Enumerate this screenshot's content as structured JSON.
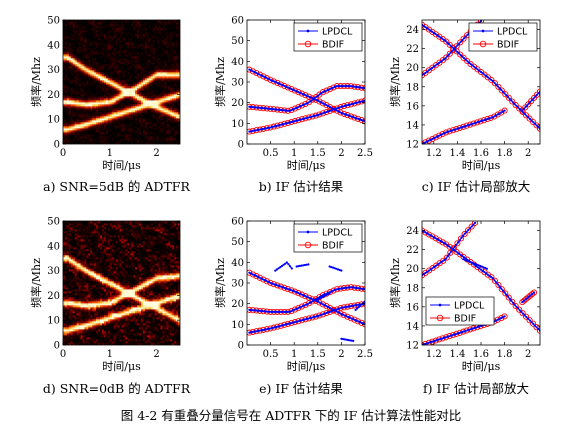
{
  "figure_caption": "图 4-2 有重叠分量信号在 ADTFR 下的 IF 估计算法性能对比",
  "chart_data": [
    {
      "id": "a",
      "type": "heatmap",
      "caption": "a) SNR=5dB 的 ADTFR",
      "xlabel": "时间/μs",
      "ylabel": "频率/Mhz",
      "xlim": [
        0,
        2.5
      ],
      "ylim": [
        0,
        50
      ],
      "xticks": [
        "0",
        "1",
        "2"
      ],
      "yticks": [
        "0",
        "10",
        "20",
        "30",
        "40",
        "50"
      ],
      "colormap": [
        "#000000",
        "#3a0000",
        "#8b0000",
        "#cc1a00",
        "#ff6a00",
        "#ffd34d",
        "#ffffe0"
      ],
      "noise_level": 0.35,
      "components": [
        {
          "name": "c1",
          "x": [
            0.1,
            0.5,
            1.0,
            1.5,
            2.0,
            2.5
          ],
          "y": [
            35,
            30,
            25,
            20,
            15,
            11
          ]
        },
        {
          "name": "c2",
          "x": [
            0.1,
            0.5,
            1.0,
            1.5,
            2.0,
            2.5
          ],
          "y": [
            17,
            16,
            17,
            22,
            28,
            28
          ]
        },
        {
          "name": "c3",
          "x": [
            0.1,
            0.5,
            1.0,
            1.5,
            2.0,
            2.5
          ],
          "y": [
            6,
            8,
            11,
            14,
            17,
            20
          ]
        }
      ]
    },
    {
      "id": "b",
      "type": "line",
      "caption": "b) IF 估计结果",
      "xlabel": "时间/μs",
      "ylabel": "频率/Mhz",
      "xlim": [
        0,
        2.5
      ],
      "ylim": [
        0,
        60
      ],
      "xticks": [
        "0.5",
        "1",
        "1.5",
        "2",
        "2.5"
      ],
      "yticks": [
        "0",
        "10",
        "20",
        "30",
        "40",
        "50",
        "60"
      ],
      "legend": [
        "LPDCL",
        "BDIF"
      ],
      "legend_position": "top-right",
      "series": [
        {
          "name": "LPDCL",
          "color": "#0000ff",
          "marker": "dot",
          "curves": [
            {
              "x": [
                0.05,
                0.5,
                1.0,
                1.5,
                2.0,
                2.5
              ],
              "y": [
                36,
                31,
                26,
                21,
                15,
                11
              ]
            },
            {
              "x": [
                0.05,
                0.5,
                0.9,
                1.3,
                1.6,
                1.9,
                2.2,
                2.5
              ],
              "y": [
                18,
                17,
                16,
                20,
                25,
                28,
                28,
                27
              ]
            },
            {
              "x": [
                0.05,
                0.5,
                1.0,
                1.5,
                2.0,
                2.5
              ],
              "y": [
                6,
                8,
                11,
                14,
                18,
                21
              ]
            }
          ]
        },
        {
          "name": "BDIF",
          "color": "#ff0000",
          "marker": "circle",
          "curves": [
            {
              "x": [
                0.05,
                0.5,
                1.0,
                1.5,
                2.0,
                2.5
              ],
              "y": [
                36,
                31,
                26,
                21,
                15,
                11
              ]
            },
            {
              "x": [
                0.05,
                0.5,
                0.9,
                1.3,
                1.6,
                1.9,
                2.2,
                2.5
              ],
              "y": [
                18,
                17,
                16,
                20,
                25,
                28,
                28,
                27
              ]
            },
            {
              "x": [
                0.05,
                0.5,
                1.0,
                1.5,
                2.0,
                2.5
              ],
              "y": [
                6,
                8,
                11,
                14,
                18,
                21
              ]
            }
          ]
        }
      ]
    },
    {
      "id": "c",
      "type": "line",
      "caption": "c) IF 估计局部放大",
      "xlabel": "时间/μs",
      "ylabel": "频率/Mhz",
      "xlim": [
        1.1,
        2.1
      ],
      "ylim": [
        12,
        25
      ],
      "xticks": [
        "1.2",
        "1.4",
        "1.6",
        "1.8",
        "2"
      ],
      "yticks": [
        "12",
        "14",
        "16",
        "18",
        "20",
        "22",
        "24"
      ],
      "legend": [
        "LPDCL",
        "BDIF"
      ],
      "legend_position": "top-right",
      "series": [
        {
          "name": "LPDCL",
          "color": "#0000ff",
          "marker": "dot",
          "curves": [
            {
              "x": [
                1.1,
                1.3,
                1.5,
                1.7,
                1.9,
                2.1
              ],
              "y": [
                24.5,
                22.8,
                20.5,
                18.6,
                16.0,
                13.6
              ]
            },
            {
              "x": [
                1.1,
                1.3,
                1.45,
                1.6
              ],
              "y": [
                19.2,
                21.0,
                23.0,
                24.9
              ]
            },
            {
              "x": [
                1.1,
                1.3,
                1.5,
                1.7,
                1.8
              ],
              "y": [
                12.0,
                13.2,
                14.0,
                14.8,
                15.5
              ]
            },
            {
              "x": [
                1.95,
                2.1
              ],
              "y": [
                15.5,
                17.5
              ]
            }
          ]
        },
        {
          "name": "BDIF",
          "color": "#ff0000",
          "marker": "circle",
          "curves": [
            {
              "x": [
                1.1,
                1.3,
                1.5,
                1.7,
                1.9,
                2.1
              ],
              "y": [
                24.5,
                22.8,
                20.5,
                18.6,
                16.0,
                13.6
              ]
            },
            {
              "x": [
                1.1,
                1.3,
                1.45,
                1.6
              ],
              "y": [
                19.2,
                21.0,
                23.0,
                24.9
              ]
            },
            {
              "x": [
                1.1,
                1.3,
                1.5,
                1.7,
                1.8
              ],
              "y": [
                12.0,
                13.2,
                14.0,
                14.8,
                15.5
              ]
            },
            {
              "x": [
                1.95,
                2.1
              ],
              "y": [
                15.5,
                17.5
              ]
            }
          ]
        }
      ]
    },
    {
      "id": "d",
      "type": "heatmap",
      "caption": "d) SNR=0dB 的 ADTFR",
      "xlabel": "时间/μs",
      "ylabel": "频率/Mhz",
      "xlim": [
        0,
        2.5
      ],
      "ylim": [
        0,
        50
      ],
      "xticks": [
        "0",
        "1",
        "2"
      ],
      "yticks": [
        "0",
        "10",
        "20",
        "30",
        "40",
        "50"
      ],
      "colormap": [
        "#000000",
        "#3a0000",
        "#8b0000",
        "#cc1a00",
        "#ff6a00",
        "#ffd34d",
        "#ffffe0"
      ],
      "noise_level": 0.7,
      "components": [
        {
          "name": "c1",
          "x": [
            0.1,
            0.5,
            1.0,
            1.5,
            2.0,
            2.5
          ],
          "y": [
            35,
            30,
            25,
            20,
            15,
            10
          ]
        },
        {
          "name": "c2",
          "x": [
            0.1,
            0.5,
            1.0,
            1.5,
            2.0,
            2.5
          ],
          "y": [
            17,
            16,
            17,
            22,
            27,
            28
          ]
        },
        {
          "name": "c3",
          "x": [
            0.1,
            0.5,
            1.0,
            1.5,
            2.0,
            2.5
          ],
          "y": [
            6,
            8,
            11,
            14,
            17,
            20
          ]
        }
      ]
    },
    {
      "id": "e",
      "type": "line",
      "caption": "e) IF 估计结果",
      "xlabel": "时间/μs",
      "ylabel": "频率/Mhz",
      "xlim": [
        0,
        2.5
      ],
      "ylim": [
        0,
        60
      ],
      "xticks": [
        "0.5",
        "1",
        "1.5",
        "2",
        "2.5"
      ],
      "yticks": [
        "0",
        "10",
        "20",
        "30",
        "40",
        "50",
        "60"
      ],
      "legend": [
        "LPDCL",
        "BDIF"
      ],
      "legend_position": "top-right",
      "series": [
        {
          "name": "LPDCL",
          "color": "#0000ff",
          "marker": "dot",
          "curves": [
            {
              "x": [
                0.05,
                0.5,
                1.0,
                1.5,
                2.0,
                2.5
              ],
              "y": [
                35,
                30,
                26,
                21,
                15,
                10
              ]
            },
            {
              "x": [
                0.05,
                0.5,
                0.9,
                1.3,
                1.6,
                1.9,
                2.2,
                2.5
              ],
              "y": [
                17,
                16,
                16,
                20,
                24,
                27,
                28,
                27
              ]
            },
            {
              "x": [
                0.05,
                0.5,
                1.0,
                1.5,
                2.0,
                2.5
              ],
              "y": [
                6,
                8,
                11,
                14,
                18,
                20
              ]
            },
            {
              "x": [
                0.6,
                0.85,
                0.95
              ],
              "y": [
                36,
                40,
                37
              ]
            },
            {
              "x": [
                1.05,
                1.3
              ],
              "y": [
                38,
                39
              ]
            },
            {
              "x": [
                1.75,
                2.0
              ],
              "y": [
                38,
                36
              ]
            },
            {
              "x": [
                1.5,
                1.75
              ],
              "y": [
                22,
                25
              ]
            },
            {
              "x": [
                2.0,
                2.25
              ],
              "y": [
                3,
                2
              ]
            },
            {
              "x": [
                2.3,
                2.5
              ],
              "y": [
                17,
                21
              ]
            }
          ]
        },
        {
          "name": "BDIF",
          "color": "#ff0000",
          "marker": "circle",
          "curves": [
            {
              "x": [
                0.05,
                0.5,
                1.0,
                1.5,
                2.0,
                2.5
              ],
              "y": [
                35,
                30,
                26,
                21,
                15,
                10
              ]
            },
            {
              "x": [
                0.05,
                0.5,
                0.9,
                1.3,
                1.6,
                1.9,
                2.2,
                2.5
              ],
              "y": [
                17,
                16,
                16,
                20,
                24,
                27,
                28,
                27
              ]
            },
            {
              "x": [
                0.05,
                0.5,
                1.0,
                1.5,
                2.0,
                2.5
              ],
              "y": [
                6,
                8,
                11,
                14,
                18,
                20
              ]
            }
          ]
        }
      ]
    },
    {
      "id": "f",
      "type": "line",
      "caption": "f) IF 估计局部放大",
      "xlabel": "时间/μs",
      "ylabel": "频率/Mhz",
      "xlim": [
        1.1,
        2.1
      ],
      "ylim": [
        12,
        25
      ],
      "xticks": [
        "1.2",
        "1.4",
        "1.6",
        "1.8",
        "2"
      ],
      "yticks": [
        "12",
        "14",
        "16",
        "18",
        "20",
        "22",
        "24"
      ],
      "legend": [
        "LPDCL",
        "BDIF"
      ],
      "legend_position": "bottom-left",
      "series": [
        {
          "name": "LPDCL",
          "color": "#0000ff",
          "marker": "dot",
          "curves": [
            {
              "x": [
                1.1,
                1.3,
                1.5,
                1.7,
                1.9,
                2.1
              ],
              "y": [
                24.0,
                22.6,
                20.8,
                19.0,
                16.0,
                13.5
              ]
            },
            {
              "x": [
                1.1,
                1.3,
                1.45,
                1.55
              ],
              "y": [
                19.3,
                21.0,
                23.5,
                24.8
              ]
            },
            {
              "x": [
                1.1,
                1.3,
                1.5,
                1.7,
                1.8
              ],
              "y": [
                12.0,
                12.8,
                13.6,
                14.4,
                15.0
              ]
            },
            {
              "x": [
                1.95,
                2.05
              ],
              "y": [
                16.5,
                17.5
              ]
            },
            {
              "x": [
                1.45,
                1.65
              ],
              "y": [
                21.0,
                20.0
              ]
            }
          ]
        },
        {
          "name": "BDIF",
          "color": "#ff0000",
          "marker": "circle",
          "curves": [
            {
              "x": [
                1.1,
                1.3,
                1.5,
                1.7,
                1.9,
                2.1
              ],
              "y": [
                24.0,
                22.6,
                20.8,
                19.0,
                16.0,
                13.5
              ]
            },
            {
              "x": [
                1.1,
                1.3,
                1.45,
                1.55
              ],
              "y": [
                19.3,
                21.0,
                23.5,
                24.8
              ]
            },
            {
              "x": [
                1.1,
                1.3,
                1.5,
                1.7,
                1.8
              ],
              "y": [
                12.0,
                12.8,
                13.6,
                14.4,
                15.0
              ]
            },
            {
              "x": [
                1.95,
                2.05
              ],
              "y": [
                16.5,
                17.5
              ]
            }
          ]
        }
      ]
    }
  ]
}
